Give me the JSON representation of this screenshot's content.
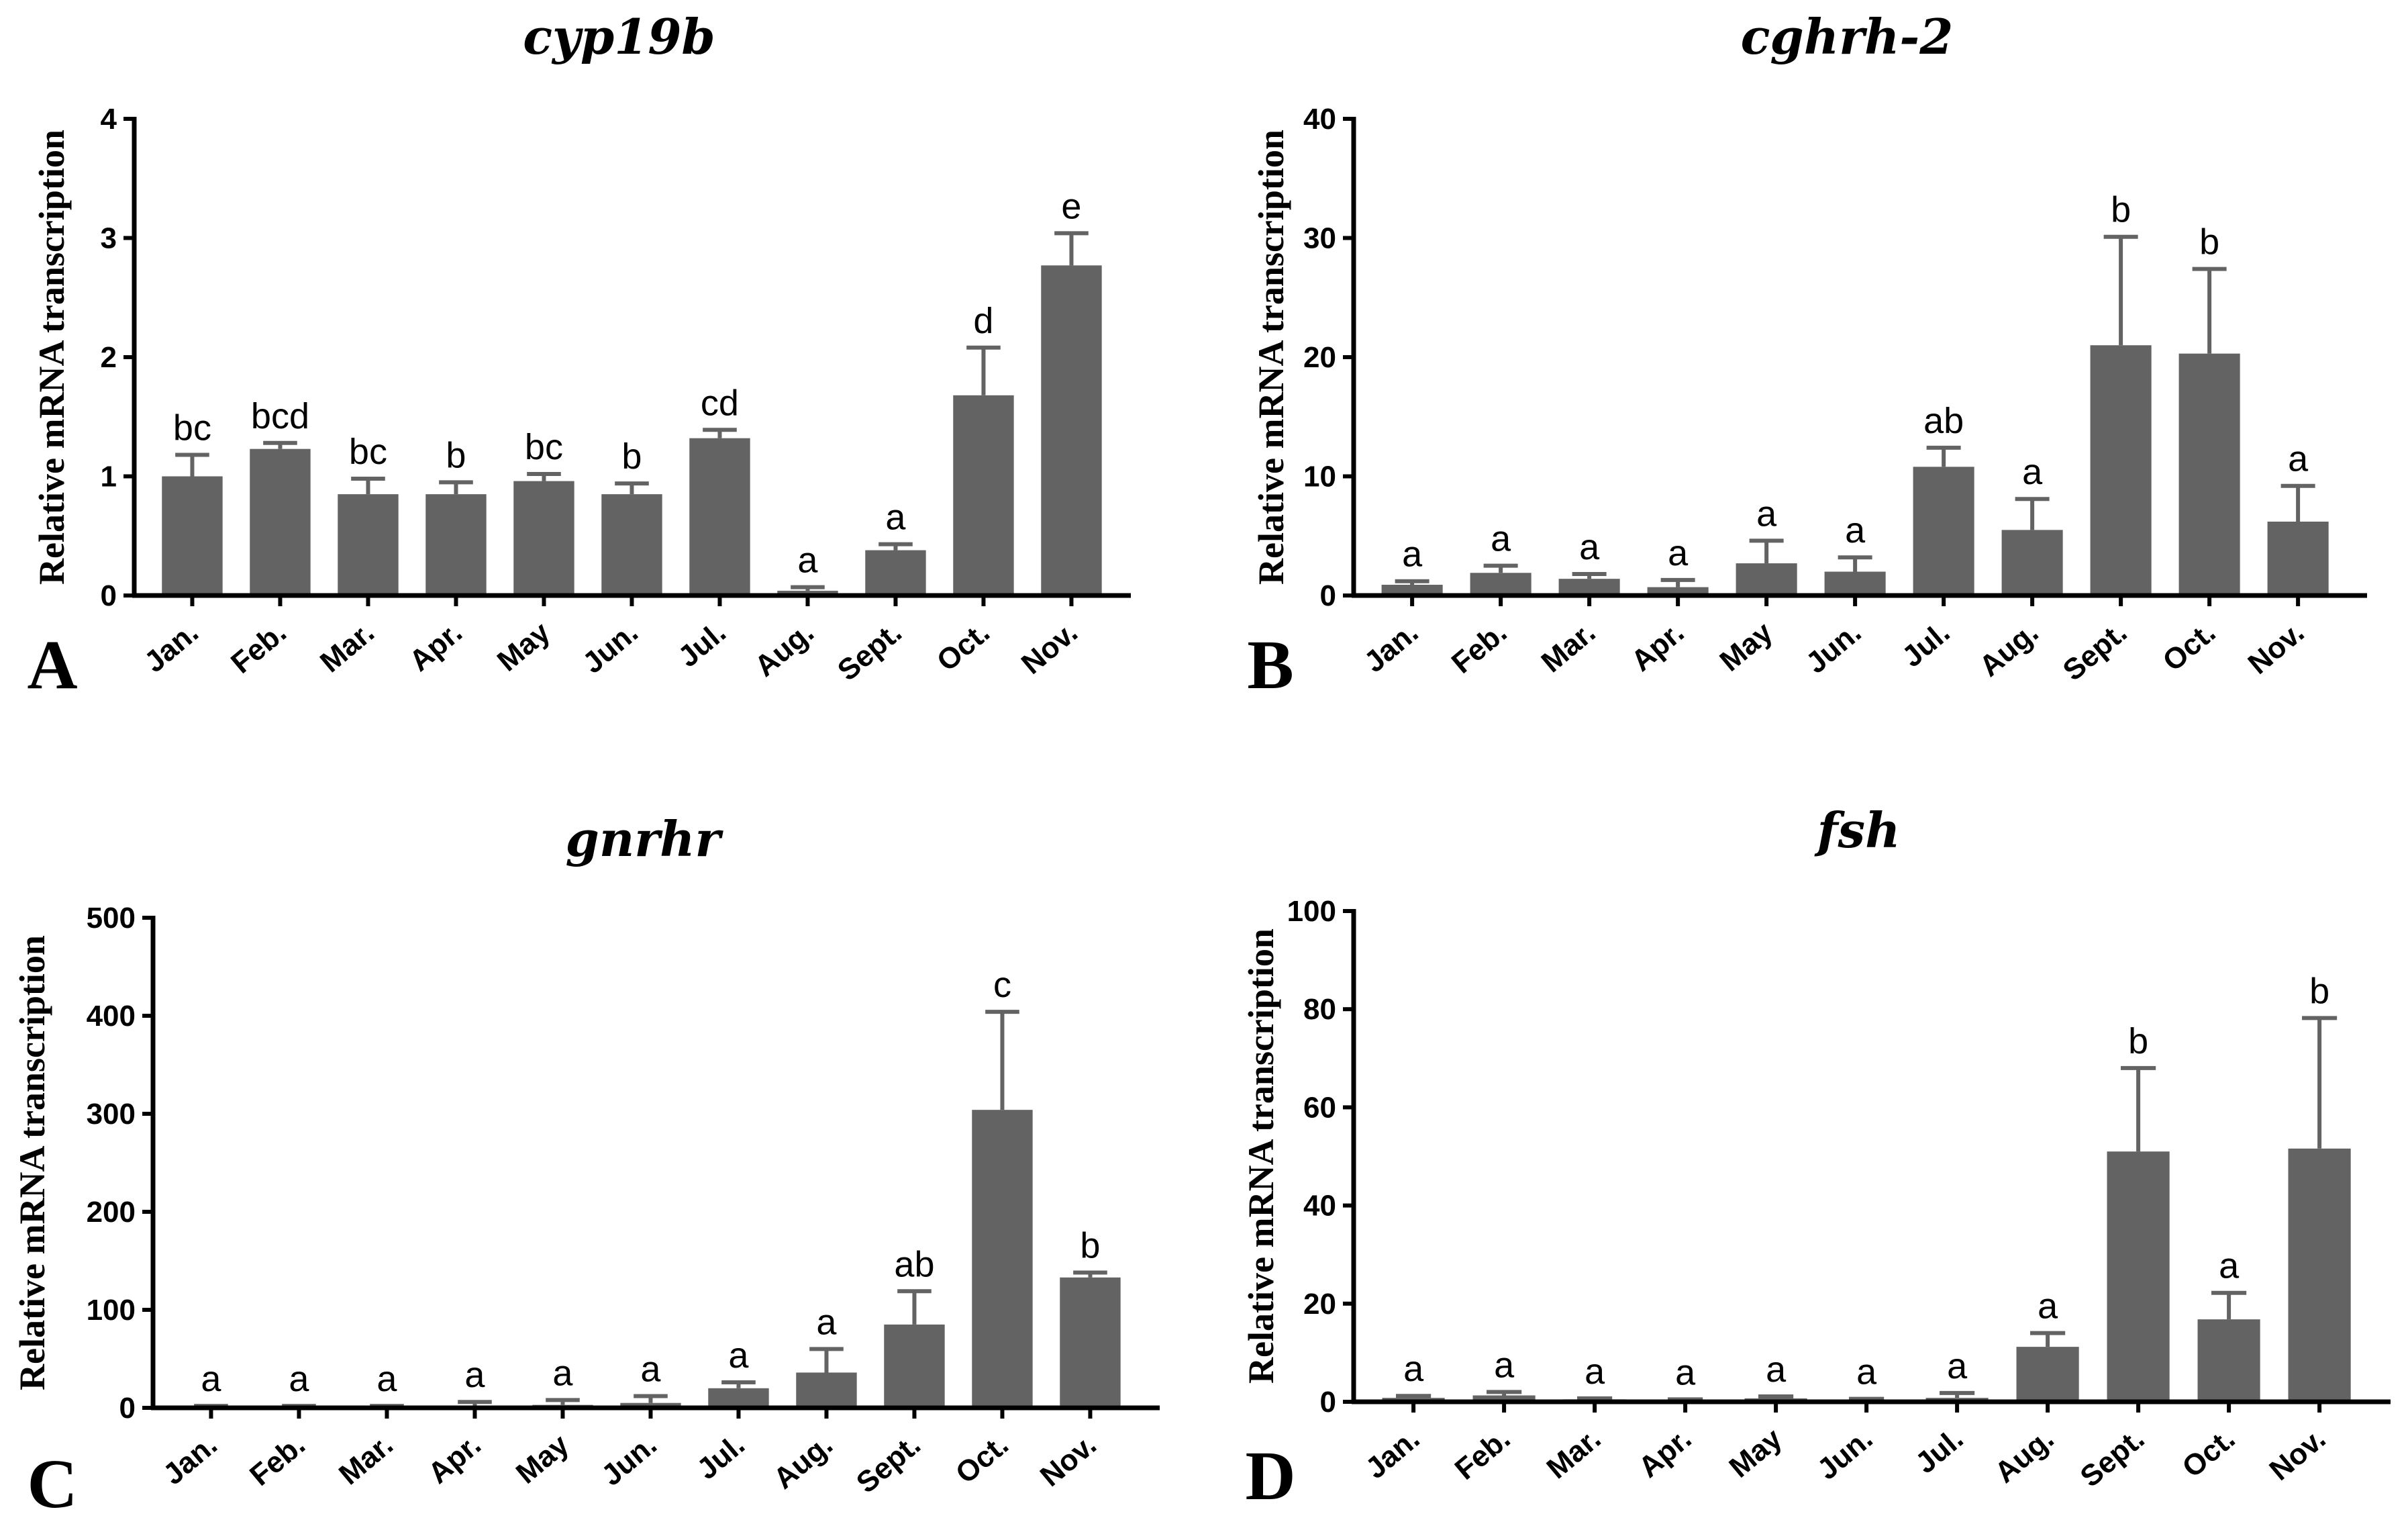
{
  "colors": {
    "bar": "#636363",
    "error": "#636363",
    "axis": "#000000"
  },
  "chart_data": [
    {
      "type": "bar",
      "panel": "A",
      "title": "cyp19b",
      "ylabel": "Relative mRNA transcription",
      "xlabel": "",
      "categories": [
        "Jan.",
        "Feb.",
        "Mar.",
        "Apr.",
        "May",
        "Jun.",
        "Jul.",
        "Aug.",
        "Sept.",
        "Oct.",
        "Nov."
      ],
      "values": [
        1.0,
        1.23,
        0.85,
        0.85,
        0.96,
        0.85,
        1.32,
        0.04,
        0.38,
        1.68,
        2.77
      ],
      "errors": [
        0.18,
        0.05,
        0.13,
        0.1,
        0.06,
        0.09,
        0.07,
        0.03,
        0.05,
        0.4,
        0.27
      ],
      "significance": [
        "bc",
        "bcd",
        "bc",
        "b",
        "bc",
        "b",
        "cd",
        "a",
        "a",
        "d",
        "e"
      ],
      "ylim": [
        0,
        4
      ],
      "yticks": [
        0,
        1,
        2,
        3,
        4
      ]
    },
    {
      "type": "bar",
      "panel": "B",
      "title": "cghrh-2",
      "ylabel": "Relative mRNA transcription",
      "xlabel": "",
      "categories": [
        "Jan.",
        "Feb.",
        "Mar.",
        "Apr.",
        "May",
        "Jun.",
        "Jul.",
        "Aug.",
        "Sept.",
        "Oct.",
        "Nov."
      ],
      "values": [
        0.9,
        1.9,
        1.4,
        0.7,
        2.7,
        2.0,
        10.8,
        5.5,
        21.0,
        20.3,
        6.2
      ],
      "errors": [
        0.3,
        0.6,
        0.4,
        0.6,
        1.9,
        1.2,
        1.6,
        2.6,
        9.1,
        7.1,
        3.0
      ],
      "significance": [
        "a",
        "a",
        "a",
        "a",
        "a",
        "a",
        "ab",
        "a",
        "b",
        "b",
        "a"
      ],
      "ylim": [
        0,
        40
      ],
      "yticks": [
        0,
        10,
        20,
        30,
        40
      ]
    },
    {
      "type": "bar",
      "panel": "C",
      "title": "gnrhr",
      "ylabel": "Relative mRNA transcription",
      "xlabel": "",
      "categories": [
        "Jan.",
        "Feb.",
        "Mar.",
        "Apr.",
        "May",
        "Jun.",
        "Jul.",
        "Aug.",
        "Sept.",
        "Oct.",
        "Nov."
      ],
      "values": [
        1,
        1,
        1,
        2,
        3,
        5,
        20,
        36,
        85,
        304,
        133
      ],
      "errors": [
        1,
        1,
        1,
        4,
        5,
        7,
        6,
        24,
        34,
        100,
        5
      ],
      "significance": [
        "a",
        "a",
        "a",
        "a",
        "a",
        "a",
        "a",
        "a",
        "ab",
        "c",
        "b"
      ],
      "ylim": [
        0,
        500
      ],
      "yticks": [
        0,
        100,
        200,
        300,
        400,
        500
      ]
    },
    {
      "type": "bar",
      "panel": "D",
      "title": "fsh",
      "ylabel": "Relative mRNA transcription",
      "xlabel": "",
      "categories": [
        "Jan.",
        "Feb.",
        "Mar.",
        "Apr.",
        "May",
        "Jun.",
        "Jul.",
        "Aug.",
        "Sept.",
        "Oct.",
        "Nov."
      ],
      "values": [
        0.8,
        1.3,
        0.5,
        0.3,
        0.7,
        0.4,
        0.8,
        11.2,
        51,
        16.8,
        51.6
      ],
      "errors": [
        0.4,
        0.7,
        0.2,
        0.2,
        0.4,
        0.2,
        1.0,
        2.8,
        17,
        5.4,
        26.6
      ],
      "significance": [
        "a",
        "a",
        "a",
        "a",
        "a",
        "a",
        "a",
        "a",
        "b",
        "a",
        "b"
      ],
      "ylim": [
        0,
        100
      ],
      "yticks": [
        0,
        20,
        40,
        60,
        80,
        100
      ]
    }
  ]
}
